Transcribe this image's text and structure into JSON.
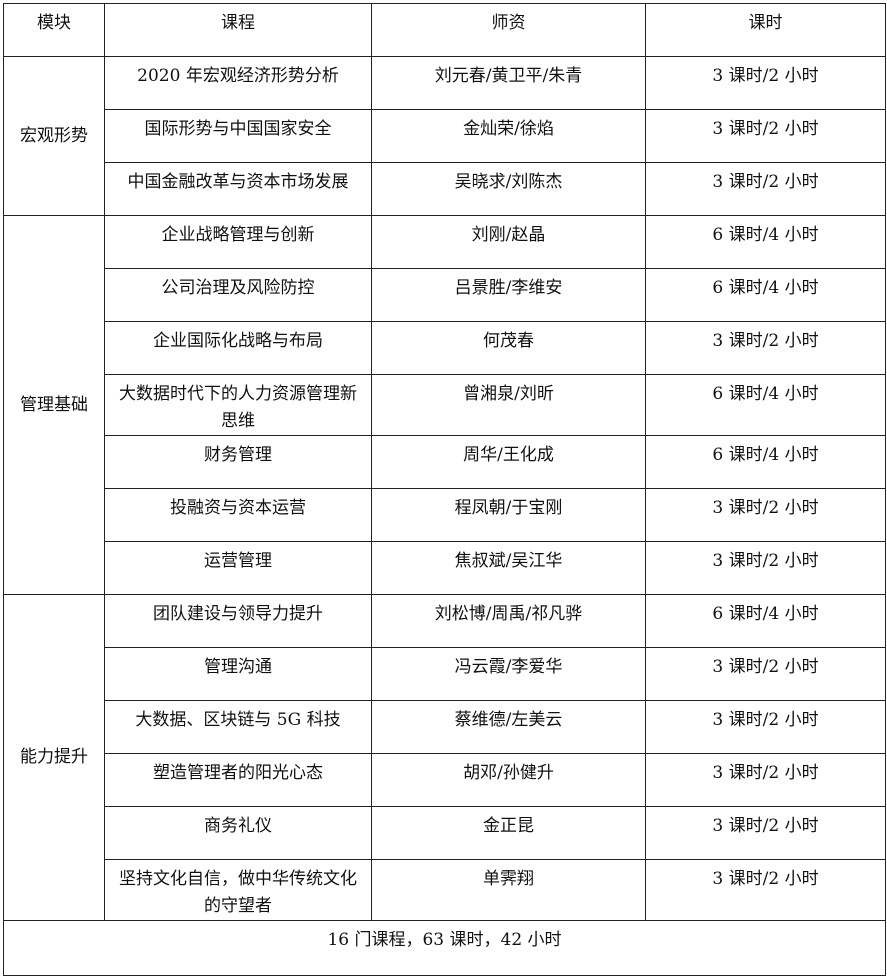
{
  "header": {
    "module": "模块",
    "course": "课程",
    "teacher": "师资",
    "hours": "课时"
  },
  "modules": [
    {
      "name": "宏观形势",
      "rows": [
        {
          "course": "2020 年宏观经济形势分析",
          "teacher": "刘元春/黄卫平/朱青",
          "hours": "3 课时/2 小时"
        },
        {
          "course": "国际形势与中国国家安全",
          "teacher": "金灿荣/徐焰",
          "hours": "3 课时/2 小时"
        },
        {
          "course": "中国金融改革与资本市场发展",
          "teacher": "吴晓求/刘陈杰",
          "hours": "3 课时/2 小时"
        }
      ]
    },
    {
      "name": "管理基础",
      "rows": [
        {
          "course": "企业战略管理与创新",
          "teacher": "刘刚/赵晶",
          "hours": "6 课时/4 小时"
        },
        {
          "course": "公司治理及风险防控",
          "teacher": "吕景胜/李维安",
          "hours": "6 课时/4 小时"
        },
        {
          "course": "企业国际化战略与布局",
          "teacher": "何茂春",
          "hours": "3 课时/2 小时"
        },
        {
          "course": "大数据时代下的人力资源管理新思维",
          "teacher": "曾湘泉/刘昕",
          "hours": "6 课时/4 小时"
        },
        {
          "course": "财务管理",
          "teacher": "周华/王化成",
          "hours": "6 课时/4 小时"
        },
        {
          "course": "投融资与资本运营",
          "teacher": "程凤朝/于宝刚",
          "hours": "3 课时/2 小时"
        },
        {
          "course": "运营管理",
          "teacher": "焦叔斌/吴江华",
          "hours": "3 课时/2 小时"
        }
      ]
    },
    {
      "name": "能力提升",
      "rows": [
        {
          "course": "团队建设与领导力提升",
          "teacher": "刘松博/周禹/祁凡骅",
          "hours": "6 课时/4 小时"
        },
        {
          "course": "管理沟通",
          "teacher": "冯云霞/李爱华",
          "hours": "3 课时/2 小时"
        },
        {
          "course": "大数据、区块链与 5G 科技",
          "teacher": "蔡维德/左美云",
          "hours": "3 课时/2 小时"
        },
        {
          "course": "塑造管理者的阳光心态",
          "teacher": "胡邓/孙健升",
          "hours": "3 课时/2 小时"
        },
        {
          "course": "商务礼仪",
          "teacher": "金正昆",
          "hours": "3 课时/2 小时"
        },
        {
          "course": "坚持文化自信，做中华传统文化的守望者",
          "teacher": "单霁翔",
          "hours": "3 课时/2 小时"
        }
      ]
    }
  ],
  "footer": "16 门课程，63 课时，42 小时"
}
